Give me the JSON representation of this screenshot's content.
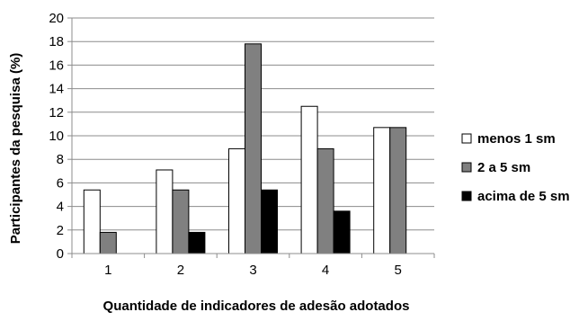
{
  "chart_data": {
    "type": "bar",
    "categories": [
      "1",
      "2",
      "3",
      "4",
      "5"
    ],
    "series": [
      {
        "name": "menos 1 sm",
        "color": "#ffffff",
        "values": [
          5.4,
          7.1,
          8.9,
          12.5,
          10.7
        ]
      },
      {
        "name": "2 a 5 sm",
        "color": "#808080",
        "values": [
          1.8,
          5.4,
          17.8,
          8.9,
          10.7
        ]
      },
      {
        "name": "acima de 5 sm",
        "color": "#000000",
        "values": [
          0,
          1.8,
          5.4,
          3.6,
          0
        ]
      }
    ],
    "xlabel": "Quantidade de indicadores de adesão adotados",
    "ylabel": "Participantes da pesquisa (%)",
    "ylim": [
      0,
      20
    ],
    "yticks": [
      0,
      2,
      4,
      6,
      8,
      10,
      12,
      14,
      16,
      18,
      20
    ],
    "grid": true,
    "legend_position": "right"
  }
}
